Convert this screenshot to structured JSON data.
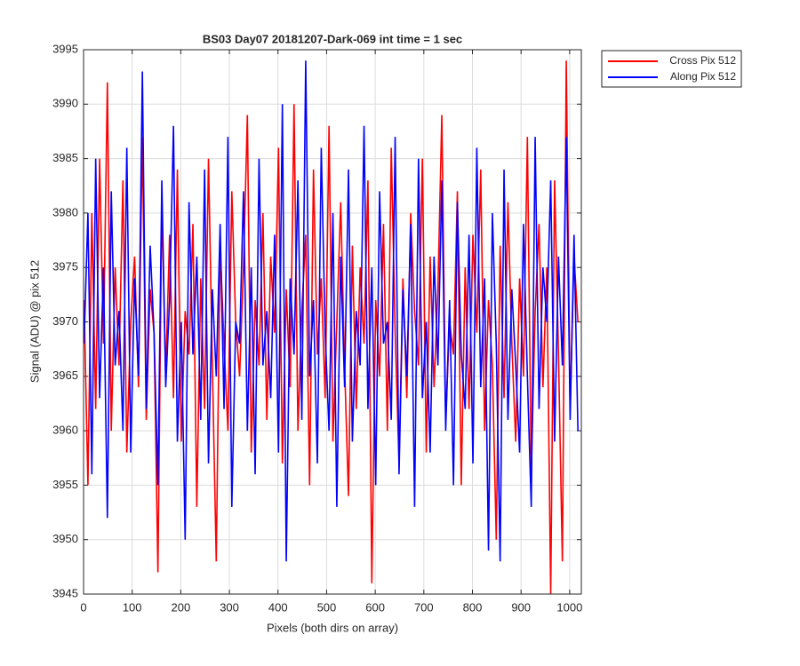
{
  "chart_data": {
    "type": "line",
    "title": "BS03 Day07 20181207-Dark-069 int time = 1 sec",
    "xlabel": "Pixels (both dirs on array)",
    "ylabel": "Signal (ADU) @ pix 512",
    "x": [
      1,
      9,
      17,
      25,
      33,
      41,
      49,
      57,
      65,
      73,
      81,
      89,
      97,
      105,
      113,
      121,
      129,
      137,
      145,
      153,
      161,
      169,
      177,
      185,
      193,
      201,
      209,
      217,
      225,
      233,
      241,
      249,
      257,
      265,
      273,
      281,
      289,
      297,
      305,
      313,
      321,
      329,
      337,
      345,
      353,
      361,
      369,
      377,
      385,
      393,
      401,
      409,
      417,
      425,
      433,
      441,
      449,
      457,
      465,
      473,
      481,
      489,
      497,
      505,
      513,
      521,
      529,
      537,
      545,
      553,
      561,
      569,
      577,
      585,
      593,
      601,
      609,
      617,
      625,
      633,
      641,
      649,
      657,
      665,
      673,
      681,
      689,
      697,
      705,
      713,
      721,
      729,
      737,
      745,
      753,
      761,
      769,
      777,
      785,
      793,
      801,
      809,
      817,
      825,
      833,
      841,
      849,
      857,
      865,
      873,
      881,
      889,
      897,
      905,
      913,
      921,
      929,
      937,
      945,
      953,
      961,
      969,
      977,
      985,
      993,
      1001,
      1009,
      1017
    ],
    "series": [
      {
        "name": "Cross Pix 512",
        "color": "#ff0000",
        "values": [
          3972,
          3955,
          3980,
          3962,
          3985,
          3968,
          3992,
          3960,
          3975,
          3966,
          3983,
          3958,
          3970,
          3976,
          3964,
          3987,
          3961,
          3973,
          3969,
          3947,
          3981,
          3965,
          3978,
          3963,
          3984,
          3959,
          3971,
          3967,
          3979,
          3953,
          3974,
          3962,
          3985,
          3966,
          3948,
          3977,
          3968,
          3960,
          3982,
          3970,
          3965,
          3975,
          3989,
          3958,
          3972,
          3966,
          3980,
          3961,
          3976,
          3969,
          3986,
          3957,
          3973,
          3964,
          3990,
          3960,
          3971,
          3978,
          3955,
          3984,
          3967,
          3974,
          3963,
          3988,
          3959,
          3970,
          3981,
          3966,
          3954,
          3977,
          3962,
          3975,
          3968,
          3983,
          3946,
          3972,
          3965,
          3979,
          3960,
          3986,
          3969,
          3957,
          3974,
          3963,
          3980,
          3971,
          3966,
          3985,
          3958,
          3976,
          3964,
          3973,
          3989,
          3961,
          3970,
          3967,
          3982,
          3955,
          3975,
          3962,
          3978,
          3969,
          3984,
          3960,
          3972,
          3966,
          3950,
          3977,
          3963,
          3981,
          3968,
          3959,
          3974,
          3965,
          3987,
          3956,
          3971,
          3979,
          3964,
          3975,
          3945,
          3983,
          3967,
          3948,
          3994,
          3962,
          3976,
          3970
        ]
      },
      {
        "name": "Along Pix 512",
        "color": "#0000ff",
        "values": [
          3968,
          3980,
          3956,
          3985,
          3963,
          3975,
          3952,
          3982,
          3966,
          3971,
          3960,
          3986,
          3958,
          3974,
          3965,
          3993,
          3962,
          3977,
          3969,
          3955,
          3983,
          3964,
          3972,
          3988,
          3959,
          3970,
          3950,
          3981,
          3967,
          3976,
          3961,
          3984,
          3957,
          3973,
          3965,
          3979,
          3962,
          3987,
          3953,
          3970,
          3968,
          3982,
          3960,
          3975,
          3956,
          3985,
          3966,
          3971,
          3963,
          3978,
          3958,
          3990,
          3948,
          3974,
          3967,
          3983,
          3961,
          3994,
          3965,
          3972,
          3957,
          3986,
          3969,
          3960,
          3980,
          3953,
          3976,
          3964,
          3984,
          3959,
          3971,
          3966,
          3988,
          3962,
          3975,
          3955,
          3982,
          3968,
          3970,
          3961,
          3987,
          3956,
          3973,
          3965,
          3979,
          3953,
          3985,
          3963,
          3970,
          3958,
          3976,
          3966,
          3983,
          3960,
          3972,
          3955,
          3981,
          3967,
          3962,
          3978,
          3957,
          3986,
          3964,
          3974,
          3949,
          3980,
          3968,
          3948,
          3984,
          3961,
          3973,
          3966,
          3958,
          3979,
          3965,
          3953,
          3987,
          3962,
          3975,
          3970,
          3983,
          3959,
          3976,
          3966,
          3987,
          3961,
          3978,
          3960
        ]
      }
    ],
    "xlim": [
      0,
      1024
    ],
    "ylim": [
      3945,
      3995
    ],
    "xticks": [
      0,
      100,
      200,
      300,
      400,
      500,
      600,
      700,
      800,
      900,
      1000
    ],
    "yticks": [
      3945,
      3950,
      3955,
      3960,
      3965,
      3970,
      3975,
      3980,
      3985,
      3990,
      3995
    ],
    "grid": true,
    "legend": "outside-top-right"
  }
}
